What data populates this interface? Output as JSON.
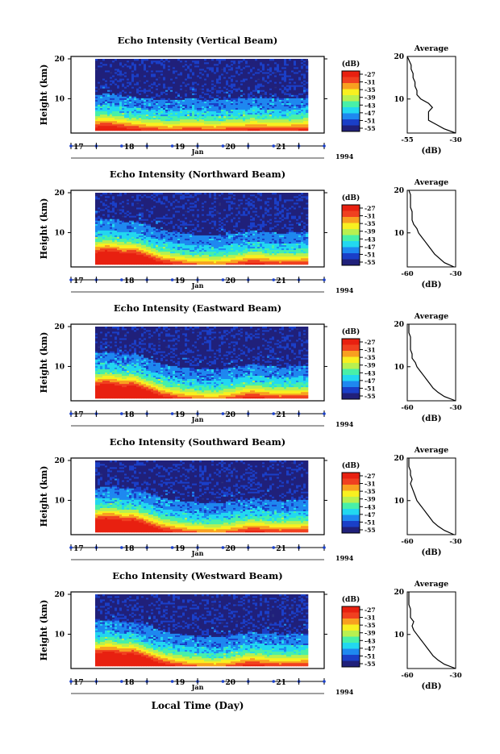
{
  "figure": {
    "year": "1994",
    "month": "Jan",
    "xlabel": "Local Time (Day)",
    "colorbar_unit": "(dB)",
    "average_title": "Average",
    "average_xlabel": "(dB)"
  },
  "colors": {
    "colormap": [
      "#20207a",
      "#1a3fc8",
      "#1e88f0",
      "#22d8f0",
      "#48f0a8",
      "#b8f050",
      "#f8f020",
      "#f8a020",
      "#f04020",
      "#e82010"
    ],
    "background_fill": "#2a3080",
    "profile_line": "#000000",
    "day_axis_marker": "#1a3fc8"
  },
  "chart_data": [
    {
      "type": "heatmap",
      "title": "Echo Intensity (Vertical Beam)",
      "ylabel": "Height (km)",
      "y_ticks": [
        "20",
        "10"
      ],
      "x_ticks": [
        "17",
        "18",
        "19",
        "20",
        "21"
      ],
      "x_range": [
        16.5,
        21.5
      ],
      "y_range": [
        2,
        20
      ],
      "colorbar_ticks": [
        "-27",
        "-31",
        "-35",
        "-39",
        "-43",
        "-47",
        "-51",
        "-55"
      ],
      "boundary_km": [
        4.5,
        4.8,
        4.6,
        4.2,
        4.0,
        3.7,
        3.5,
        3.4,
        3.2,
        3.3,
        3.6,
        3.5,
        3.3,
        3.2,
        3.4,
        3.5,
        3.6,
        3.8,
        3.7,
        3.6,
        3.5,
        3.6,
        3.7,
        3.8
      ],
      "profile": {
        "x_ticks": [
          "-55",
          "-30"
        ],
        "x_range": [
          -55,
          -30
        ],
        "height_km": [
          2,
          3,
          4,
          5,
          6,
          7,
          8,
          9,
          10,
          11,
          12,
          13,
          14,
          15,
          16,
          17,
          18,
          19,
          20
        ],
        "db": [
          -30,
          -36,
          -40,
          -44,
          -44,
          -44,
          -42,
          -44,
          -48,
          -50,
          -50,
          -51,
          -51,
          -52,
          -52,
          -53,
          -53,
          -54,
          -55
        ]
      }
    },
    {
      "type": "heatmap",
      "title": "Echo Intensity (Northward Beam)",
      "ylabel": "Height (km)",
      "y_ticks": [
        "20",
        "10"
      ],
      "x_ticks": [
        "17",
        "18",
        "19",
        "20",
        "21"
      ],
      "x_range": [
        16.5,
        21.5
      ],
      "y_range": [
        2,
        20
      ],
      "colorbar_ticks": [
        "-27",
        "-31",
        "-35",
        "-39",
        "-43",
        "-47",
        "-51",
        "-55"
      ],
      "boundary_km": [
        6.5,
        7.0,
        6.8,
        6.2,
        6.5,
        5.8,
        5.0,
        4.2,
        3.8,
        3.5,
        3.2,
        3.0,
        3.0,
        2.8,
        3.0,
        3.3,
        3.6,
        4.0,
        3.8,
        3.6,
        3.4,
        3.5,
        3.6,
        3.7
      ],
      "profile": {
        "x_ticks": [
          "-60",
          "-30"
        ],
        "x_range": [
          -60,
          -30
        ],
        "height_km": [
          2,
          3,
          4,
          5,
          6,
          7,
          8,
          9,
          10,
          11,
          12,
          13,
          14,
          15,
          16,
          17,
          18,
          19,
          20
        ],
        "db": [
          -31,
          -37,
          -40,
          -43,
          -45,
          -47,
          -49,
          -51,
          -53,
          -54,
          -56,
          -57,
          -57,
          -57,
          -58,
          -58,
          -58,
          -58,
          -59
        ]
      }
    },
    {
      "type": "heatmap",
      "title": "Echo Intensity (Eastward Beam)",
      "ylabel": "Height (km)",
      "y_ticks": [
        "20",
        "10"
      ],
      "x_ticks": [
        "17",
        "18",
        "19",
        "20",
        "21"
      ],
      "x_range": [
        16.5,
        21.5
      ],
      "y_range": [
        2,
        20
      ],
      "colorbar_ticks": [
        "-27",
        "-31",
        "-35",
        "-39",
        "-43",
        "-47",
        "-51",
        "-55"
      ],
      "boundary_km": [
        6.8,
        7.2,
        7.0,
        6.5,
        6.8,
        6.0,
        5.2,
        4.3,
        3.8,
        3.4,
        3.1,
        2.9,
        2.8,
        2.7,
        3.0,
        3.3,
        3.7,
        4.1,
        3.8,
        3.6,
        3.4,
        3.5,
        3.6,
        3.7
      ],
      "profile": {
        "x_ticks": [
          "-60",
          "-30"
        ],
        "x_range": [
          -60,
          -30
        ],
        "height_km": [
          2,
          3,
          4,
          5,
          6,
          7,
          8,
          9,
          10,
          11,
          12,
          13,
          14,
          15,
          16,
          17,
          18,
          19,
          20
        ],
        "db": [
          -30,
          -37,
          -41,
          -44,
          -46,
          -48,
          -50,
          -52,
          -54,
          -55,
          -57,
          -57,
          -58,
          -58,
          -58,
          -58,
          -59,
          -59,
          -59
        ]
      }
    },
    {
      "type": "heatmap",
      "title": "Echo Intensity (Southward Beam)",
      "ylabel": "Height (km)",
      "y_ticks": [
        "20",
        "10"
      ],
      "x_ticks": [
        "17",
        "18",
        "19",
        "20",
        "21"
      ],
      "x_range": [
        16.5,
        21.5
      ],
      "y_range": [
        2,
        20
      ],
      "colorbar_ticks": [
        "-27",
        "-31",
        "-35",
        "-39",
        "-43",
        "-47",
        "-51",
        "-55"
      ],
      "boundary_km": [
        6.6,
        7.0,
        6.9,
        6.4,
        6.6,
        5.9,
        5.1,
        4.3,
        3.8,
        3.5,
        3.2,
        3.0,
        2.9,
        2.8,
        3.0,
        3.3,
        3.6,
        4.0,
        3.8,
        3.6,
        3.4,
        3.5,
        3.6,
        3.7
      ],
      "profile": {
        "x_ticks": [
          "-60",
          "-30"
        ],
        "x_range": [
          -60,
          -30
        ],
        "height_km": [
          2,
          3,
          4,
          5,
          6,
          7,
          8,
          9,
          10,
          11,
          12,
          13,
          14,
          15,
          16,
          17,
          18,
          19,
          20
        ],
        "db": [
          -31,
          -37,
          -41,
          -44,
          -46,
          -48,
          -50,
          -52,
          -54,
          -55,
          -56,
          -57,
          -58,
          -57,
          -58,
          -58,
          -59,
          -59,
          -59
        ]
      }
    },
    {
      "type": "heatmap",
      "title": "Echo Intensity (Westward Beam)",
      "ylabel": "Height (km)",
      "y_ticks": [
        "20",
        "10"
      ],
      "x_ticks": [
        "17",
        "18",
        "19",
        "20",
        "21"
      ],
      "x_range": [
        16.5,
        21.5
      ],
      "y_range": [
        2,
        20
      ],
      "colorbar_ticks": [
        "-27",
        "-31",
        "-35",
        "-39",
        "-43",
        "-47",
        "-51",
        "-55"
      ],
      "boundary_km": [
        6.7,
        7.1,
        7.0,
        6.5,
        6.7,
        6.0,
        5.2,
        4.4,
        3.9,
        3.5,
        3.2,
        3.0,
        2.9,
        2.8,
        3.0,
        3.3,
        3.7,
        4.1,
        3.8,
        3.6,
        3.4,
        3.5,
        3.6,
        3.7
      ],
      "profile": {
        "x_ticks": [
          "-60",
          "-30"
        ],
        "x_range": [
          -60,
          -30
        ],
        "height_km": [
          2,
          3,
          4,
          5,
          6,
          7,
          8,
          9,
          10,
          11,
          12,
          13,
          14,
          15,
          16,
          17,
          18,
          19,
          20
        ],
        "db": [
          -30,
          -37,
          -41,
          -44,
          -46,
          -48,
          -50,
          -52,
          -54,
          -56,
          -57,
          -56,
          -58,
          -58,
          -58,
          -59,
          -59,
          -59,
          -59
        ]
      }
    }
  ]
}
